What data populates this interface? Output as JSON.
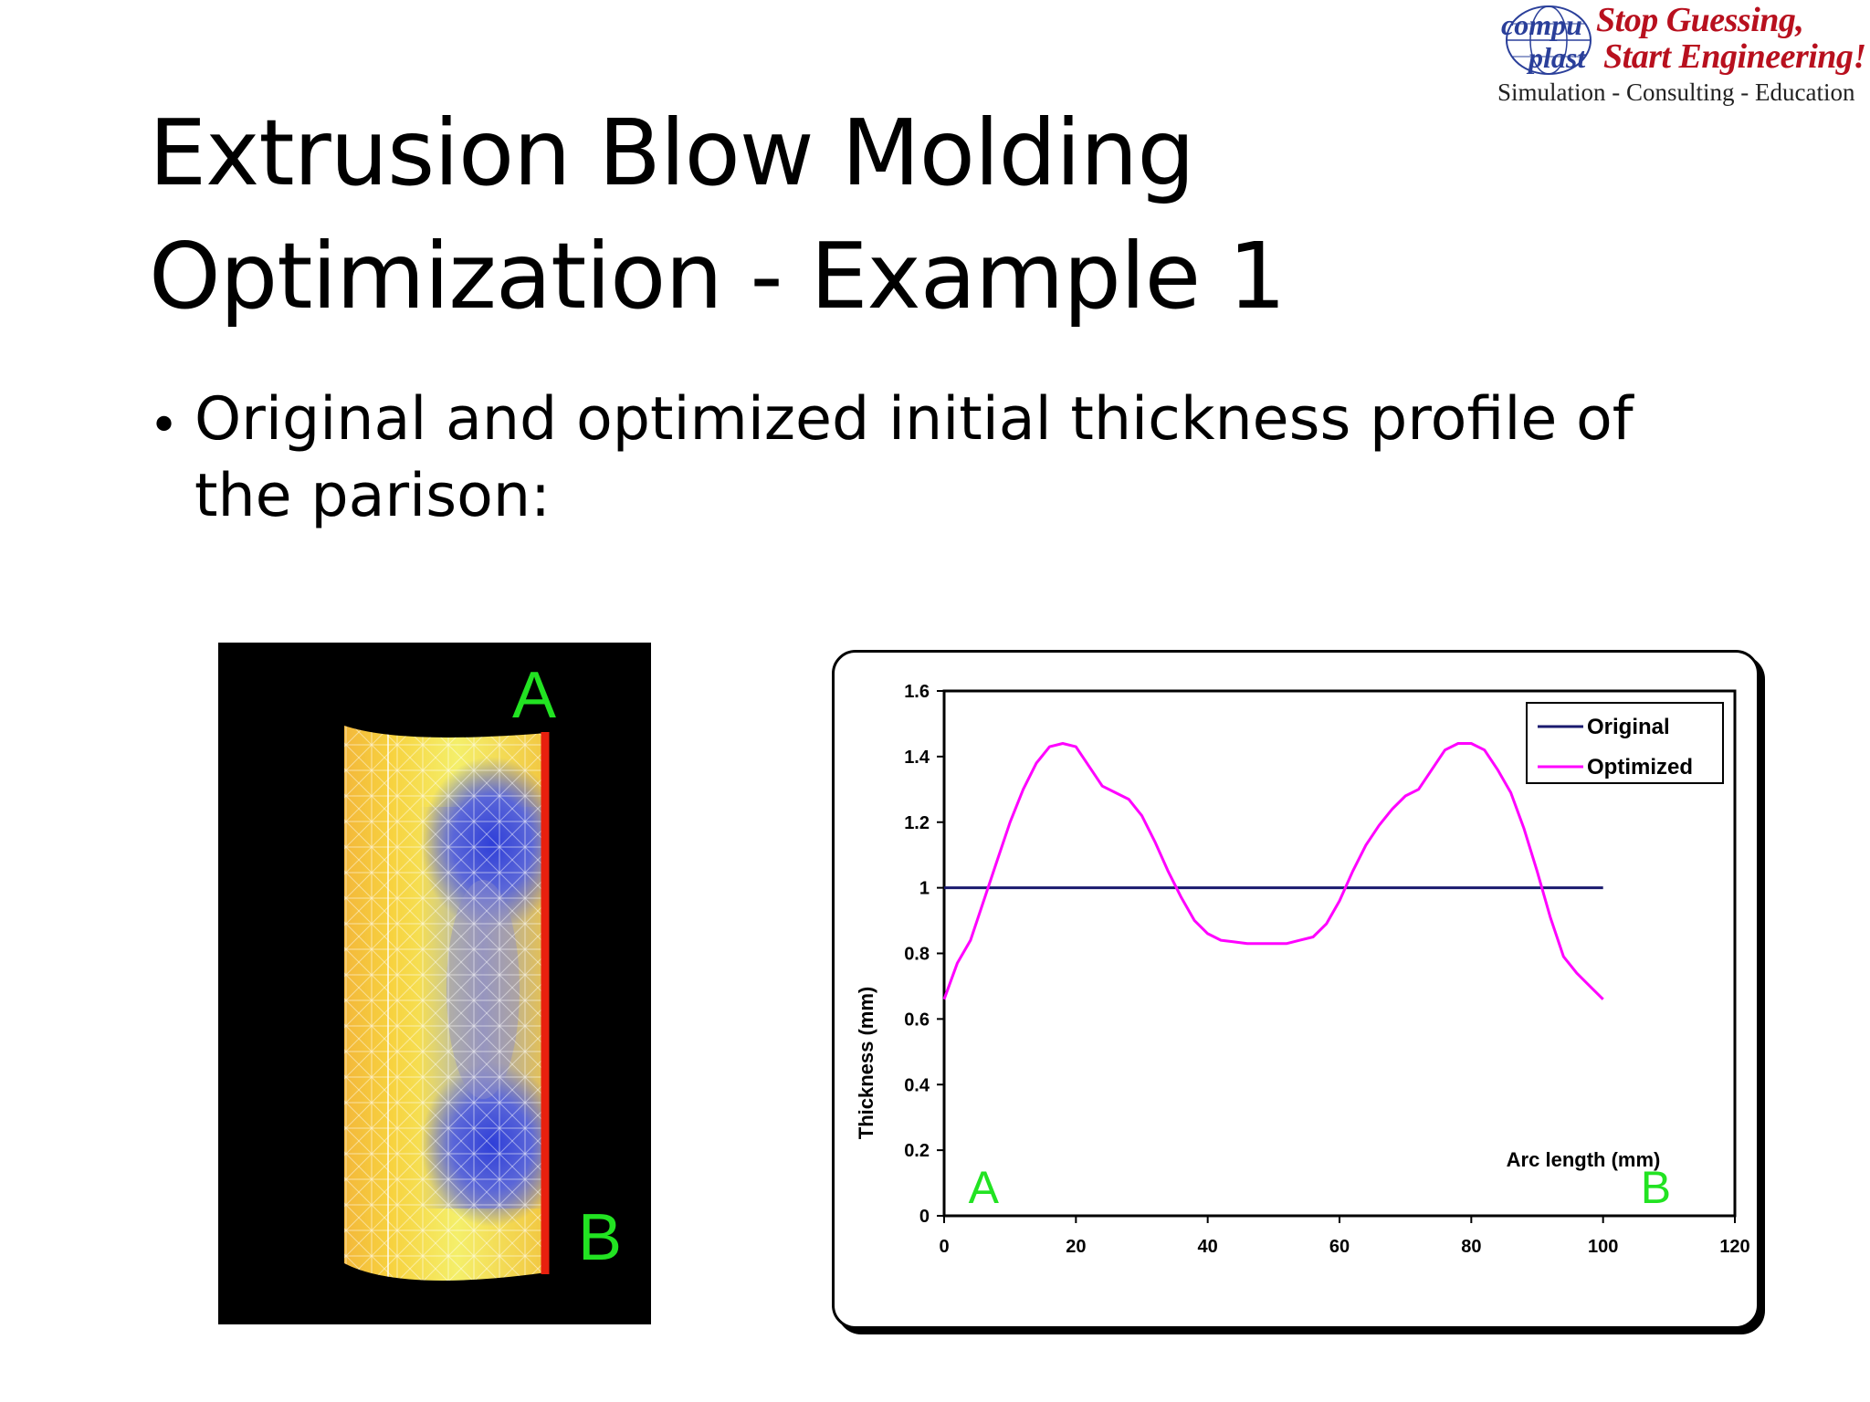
{
  "logo": {
    "globe_text_top": "compu",
    "globe_text_bottom": "plast",
    "tagline_1": "Stop Guessing,",
    "tagline_2": "Start Engineering!",
    "subtitle": "Simulation - Consulting - Education",
    "colors": {
      "brand_red": "#b8101e",
      "globe_blue": "#2a3f9a"
    }
  },
  "slide": {
    "title_line1": "Extrusion Blow Molding",
    "title_line2": "Optimization - Example 1",
    "bullet": "Original and optimized initial thickness profile of the parison:"
  },
  "parison_figure": {
    "label_top": "A",
    "label_bottom": "B",
    "colors": {
      "background": "#000000",
      "label": "#22e322",
      "edge": "#e8200e",
      "thin_region": "#2f3fd8",
      "thick_region": "#f5c23a"
    }
  },
  "chart_data": {
    "type": "line",
    "title": "",
    "xlabel": "Arc length (mm)",
    "ylabel": "Thickness (mm)",
    "xlim": [
      0,
      120
    ],
    "ylim": [
      0,
      1.6
    ],
    "xticks": [
      "0",
      "20",
      "40",
      "60",
      "80",
      "100",
      "120"
    ],
    "yticks": [
      "0",
      "0.2",
      "0.4",
      "0.6",
      "0.8",
      "1",
      "1.2",
      "1.4",
      "1.6"
    ],
    "legend_position": "top-right",
    "annotations": [
      {
        "text": "A",
        "x": 6,
        "y": 0.1,
        "color": "#22e322"
      },
      {
        "text": "B",
        "x": 108,
        "y": 0.1,
        "color": "#22e322"
      }
    ],
    "series": [
      {
        "name": "Original",
        "color": "#1a1a6e",
        "x": [
          0,
          100
        ],
        "y": [
          1.0,
          1.0
        ]
      },
      {
        "name": "Optimized",
        "color": "#ff00ff",
        "x": [
          0,
          2,
          4,
          6,
          8,
          10,
          12,
          14,
          16,
          18,
          20,
          22,
          24,
          26,
          28,
          30,
          32,
          34,
          36,
          38,
          40,
          42,
          44,
          46,
          48,
          50,
          52,
          54,
          56,
          58,
          60,
          62,
          64,
          66,
          68,
          70,
          72,
          74,
          76,
          78,
          80,
          82,
          84,
          86,
          88,
          90,
          92,
          94,
          96,
          98,
          100
        ],
        "y": [
          0.66,
          0.77,
          0.84,
          0.96,
          1.08,
          1.2,
          1.3,
          1.38,
          1.43,
          1.44,
          1.43,
          1.37,
          1.31,
          1.29,
          1.27,
          1.22,
          1.14,
          1.05,
          0.97,
          0.9,
          0.86,
          0.84,
          0.835,
          0.83,
          0.83,
          0.83,
          0.83,
          0.84,
          0.85,
          0.89,
          0.96,
          1.05,
          1.13,
          1.19,
          1.24,
          1.28,
          1.3,
          1.36,
          1.42,
          1.44,
          1.44,
          1.42,
          1.36,
          1.29,
          1.18,
          1.05,
          0.91,
          0.79,
          0.74,
          0.7,
          0.66
        ]
      }
    ]
  }
}
